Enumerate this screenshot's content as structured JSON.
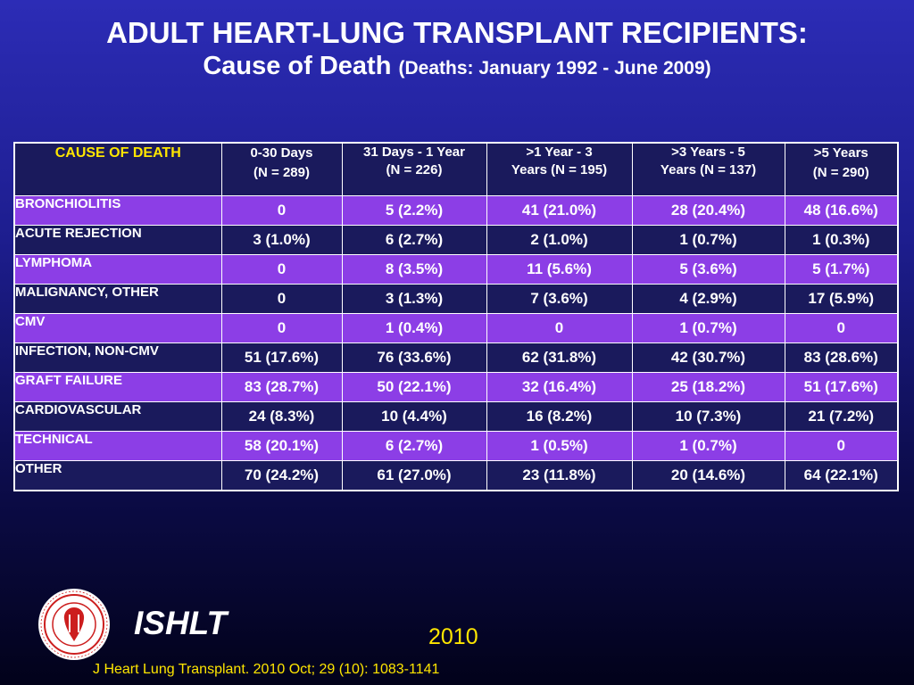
{
  "title_line1": "ADULT HEART-LUNG TRANSPLANT RECIPIENTS:",
  "title_main": "Cause of Death",
  "title_sub": "(Deaths: January 1992 - June 2009)",
  "chart_data": {
    "type": "table",
    "headers": [
      {
        "line1": "CAUSE OF DEATH",
        "line2": ""
      },
      {
        "line1": "0-30 Days",
        "line2": "(N = 289)"
      },
      {
        "line1": "31 Days - 1 Year",
        "line2": "(N = 226)"
      },
      {
        "line1": ">1 Year - 3",
        "line2": "Years  (N = 195)"
      },
      {
        "line1": ">3 Years - 5",
        "line2": "Years   (N = 137)"
      },
      {
        "line1": ">5 Years",
        "line2": "(N = 290)"
      }
    ],
    "rows": [
      {
        "cause": "BRONCHIOLITIS",
        "values": [
          "0",
          "5 (2.2%)",
          "41 (21.0%)",
          "28 (20.4%)",
          "48 (16.6%)"
        ]
      },
      {
        "cause": "ACUTE REJECTION",
        "values": [
          "3 (1.0%)",
          "6 (2.7%)",
          "2 (1.0%)",
          "1 (0.7%)",
          "1 (0.3%)"
        ]
      },
      {
        "cause": "LYMPHOMA",
        "values": [
          "0",
          "8 (3.5%)",
          "11 (5.6%)",
          "5 (3.6%)",
          "5 (1.7%)"
        ]
      },
      {
        "cause": "MALIGNANCY, OTHER",
        "values": [
          "0",
          "3 (1.3%)",
          "7 (3.6%)",
          "4 (2.9%)",
          "17 (5.9%)"
        ]
      },
      {
        "cause": "CMV",
        "values": [
          "0",
          "1 (0.4%)",
          "0",
          "1 (0.7%)",
          "0"
        ]
      },
      {
        "cause": "INFECTION, NON-CMV",
        "values": [
          "51 (17.6%)",
          "76 (33.6%)",
          "62 (31.8%)",
          "42 (30.7%)",
          "83 (28.6%)"
        ]
      },
      {
        "cause": "GRAFT FAILURE",
        "values": [
          "83 (28.7%)",
          "50 (22.1%)",
          "32 (16.4%)",
          "25 (18.2%)",
          "51 (17.6%)"
        ]
      },
      {
        "cause": "CARDIOVASCULAR",
        "values": [
          "24 (8.3%)",
          "10 (4.4%)",
          "16 (8.2%)",
          "10 (7.3%)",
          "21 (7.2%)"
        ]
      },
      {
        "cause": "TECHNICAL",
        "values": [
          "58 (20.1%)",
          "6 (2.7%)",
          "1 (0.5%)",
          "1 (0.7%)",
          "0"
        ]
      },
      {
        "cause": "OTHER",
        "values": [
          "70 (24.2%)",
          "61 (27.0%)",
          "23 (11.8%)",
          "20 (14.6%)",
          "64 (22.1%)"
        ]
      }
    ]
  },
  "colors": {
    "row_purple": "#8c3ee6",
    "row_navy": "#1a1a5c",
    "header_highlight": "#ffe600"
  },
  "footer": {
    "logo_icon": "ishlt-society-seal-icon",
    "org": "ISHLT",
    "year": "2010",
    "citation": "J Heart Lung Transplant. 2010 Oct; 29 (10): 1083-1141"
  }
}
